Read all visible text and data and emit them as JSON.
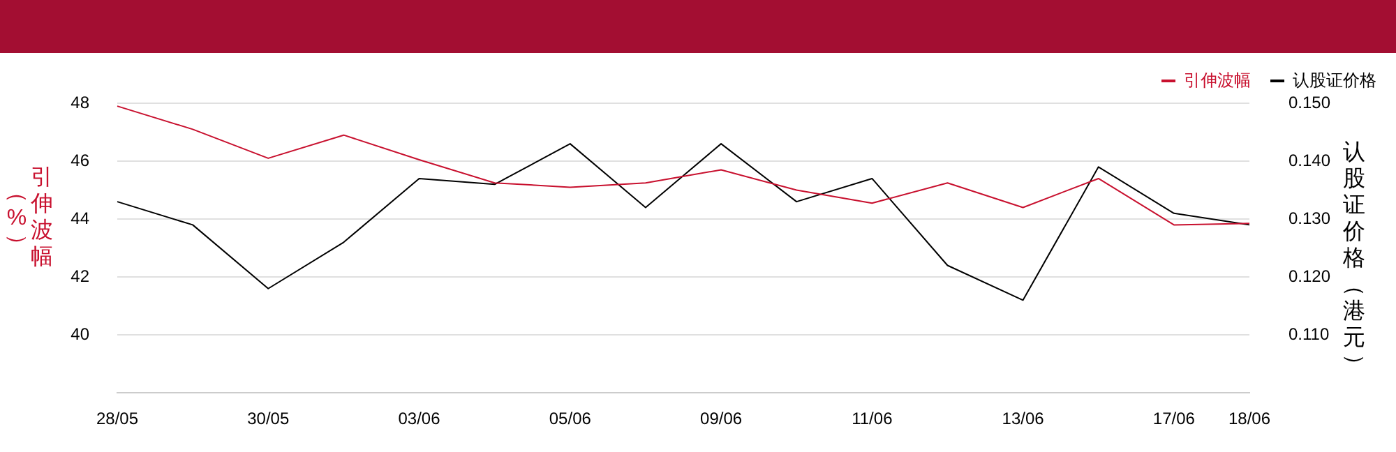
{
  "chart_data": {
    "type": "line",
    "categories": [
      "28/05",
      null,
      "30/05",
      null,
      "03/06",
      null,
      "05/06",
      null,
      "09/06",
      null,
      "11/06",
      null,
      "13/06",
      null,
      "17/06",
      "18/06"
    ],
    "series": [
      {
        "name": "引伸波幅",
        "color": "#c8102e",
        "values": [
          47.9,
          47.1,
          46.1,
          46.9,
          46.05,
          45.25,
          45.1,
          45.25,
          45.7,
          45.0,
          44.55,
          45.25,
          44.4,
          45.4,
          43.8,
          43.85
        ]
      },
      {
        "name": "认股证价格",
        "color": "#000000",
        "axis": "y2",
        "values": [
          0.133,
          0.129,
          0.118,
          0.126,
          0.137,
          0.136,
          0.143,
          0.132,
          0.143,
          0.133,
          0.137,
          0.122,
          0.116,
          0.139,
          0.131,
          0.129
        ]
      }
    ],
    "ylabel": "引伸波幅（%）",
    "y2label": "认股证价格（港元）",
    "ylim": [
      38,
      48
    ],
    "yticks": [
      40,
      42,
      44,
      46,
      48
    ],
    "y2lim": [
      0.1,
      0.15
    ],
    "y2ticks": [
      {
        "value": 0.11,
        "label": "0.110"
      },
      {
        "value": 0.12,
        "label": "0.120"
      },
      {
        "value": 0.13,
        "label": "0.130"
      },
      {
        "value": 0.14,
        "label": "0.140"
      },
      {
        "value": 0.15,
        "label": "0.150"
      }
    ],
    "grid": "y",
    "legend": "top right"
  }
}
